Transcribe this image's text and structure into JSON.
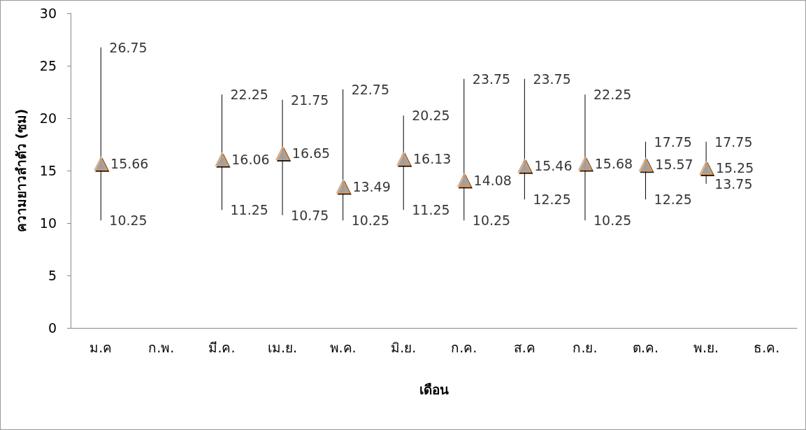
{
  "chart_data": {
    "type": "scatter",
    "xlabel": "เดือน",
    "ylabel": "ความยาวลำตัว (ซม)",
    "categories": [
      "ม.ค",
      "ก.พ.",
      "มี.ค.",
      "เม.ย.",
      "พ.ค.",
      "มิ.ย.",
      "ก.ค.",
      "ส.ค",
      "ก.ย.",
      "ต.ค.",
      "พ.ย.",
      "ธ.ค."
    ],
    "values": [
      15.66,
      null,
      16.06,
      16.65,
      13.49,
      16.13,
      14.08,
      15.46,
      15.68,
      15.57,
      15.25,
      null
    ],
    "errors": [
      [
        10.25,
        26.75
      ],
      null,
      [
        11.25,
        22.25
      ],
      [
        10.75,
        21.75
      ],
      [
        10.25,
        22.75
      ],
      [
        11.25,
        20.25
      ],
      [
        10.25,
        23.75
      ],
      [
        12.25,
        23.75
      ],
      [
        10.25,
        22.25
      ],
      [
        12.25,
        17.75
      ],
      [
        13.75,
        17.75
      ],
      null
    ],
    "color": "#b3aaa3",
    "marker": "triangle",
    "data_labels": true,
    "grid": false,
    "ylim": [
      0,
      30
    ],
    "yticks": [
      0,
      5,
      10,
      15,
      20,
      25,
      30
    ],
    "annotations": [
      {
        "text": "26.75",
        "x": "ม.ค",
        "y": 26.75
      },
      {
        "text": "10.25",
        "x": "ม.ค",
        "y": 10.25
      },
      {
        "text": "22.25",
        "x": "มี.ค.",
        "y": 22.25
      },
      {
        "text": "11.25",
        "x": "มี.ค.",
        "y": 11.25
      },
      {
        "text": "21.75",
        "x": "เม.ย.",
        "y": 21.75
      },
      {
        "text": "10.75",
        "x": "เม.ย.",
        "y": 10.75
      },
      {
        "text": "22.75",
        "x": "พ.ค.",
        "y": 22.75
      },
      {
        "text": "10.25",
        "x": "พ.ค.",
        "y": 10.25
      },
      {
        "text": "20.25",
        "x": "มิ.ย.",
        "y": 20.25
      },
      {
        "text": "11.25",
        "x": "มิ.ย.",
        "y": 11.25
      },
      {
        "text": "23.75",
        "x": "ก.ค.",
        "y": 23.75
      },
      {
        "text": "10.25",
        "x": "ก.ค.",
        "y": 10.25
      },
      {
        "text": "23.75",
        "x": "ส.ค",
        "y": 23.75
      },
      {
        "text": "12.25",
        "x": "ส.ค",
        "y": 12.25
      },
      {
        "text": "22.25",
        "x": "ก.ย.",
        "y": 22.25
      },
      {
        "text": "10.25",
        "x": "ก.ย.",
        "y": 10.25
      },
      {
        "text": "17.75",
        "x": "ต.ค.",
        "y": 17.75
      },
      {
        "text": "12.25",
        "x": "ต.ค.",
        "y": 12.25
      },
      {
        "text": "17.75",
        "x": "พ.ย.",
        "y": 17.75
      },
      {
        "text": "13.75",
        "x": "พ.ย.",
        "y": 13.75
      }
    ]
  }
}
